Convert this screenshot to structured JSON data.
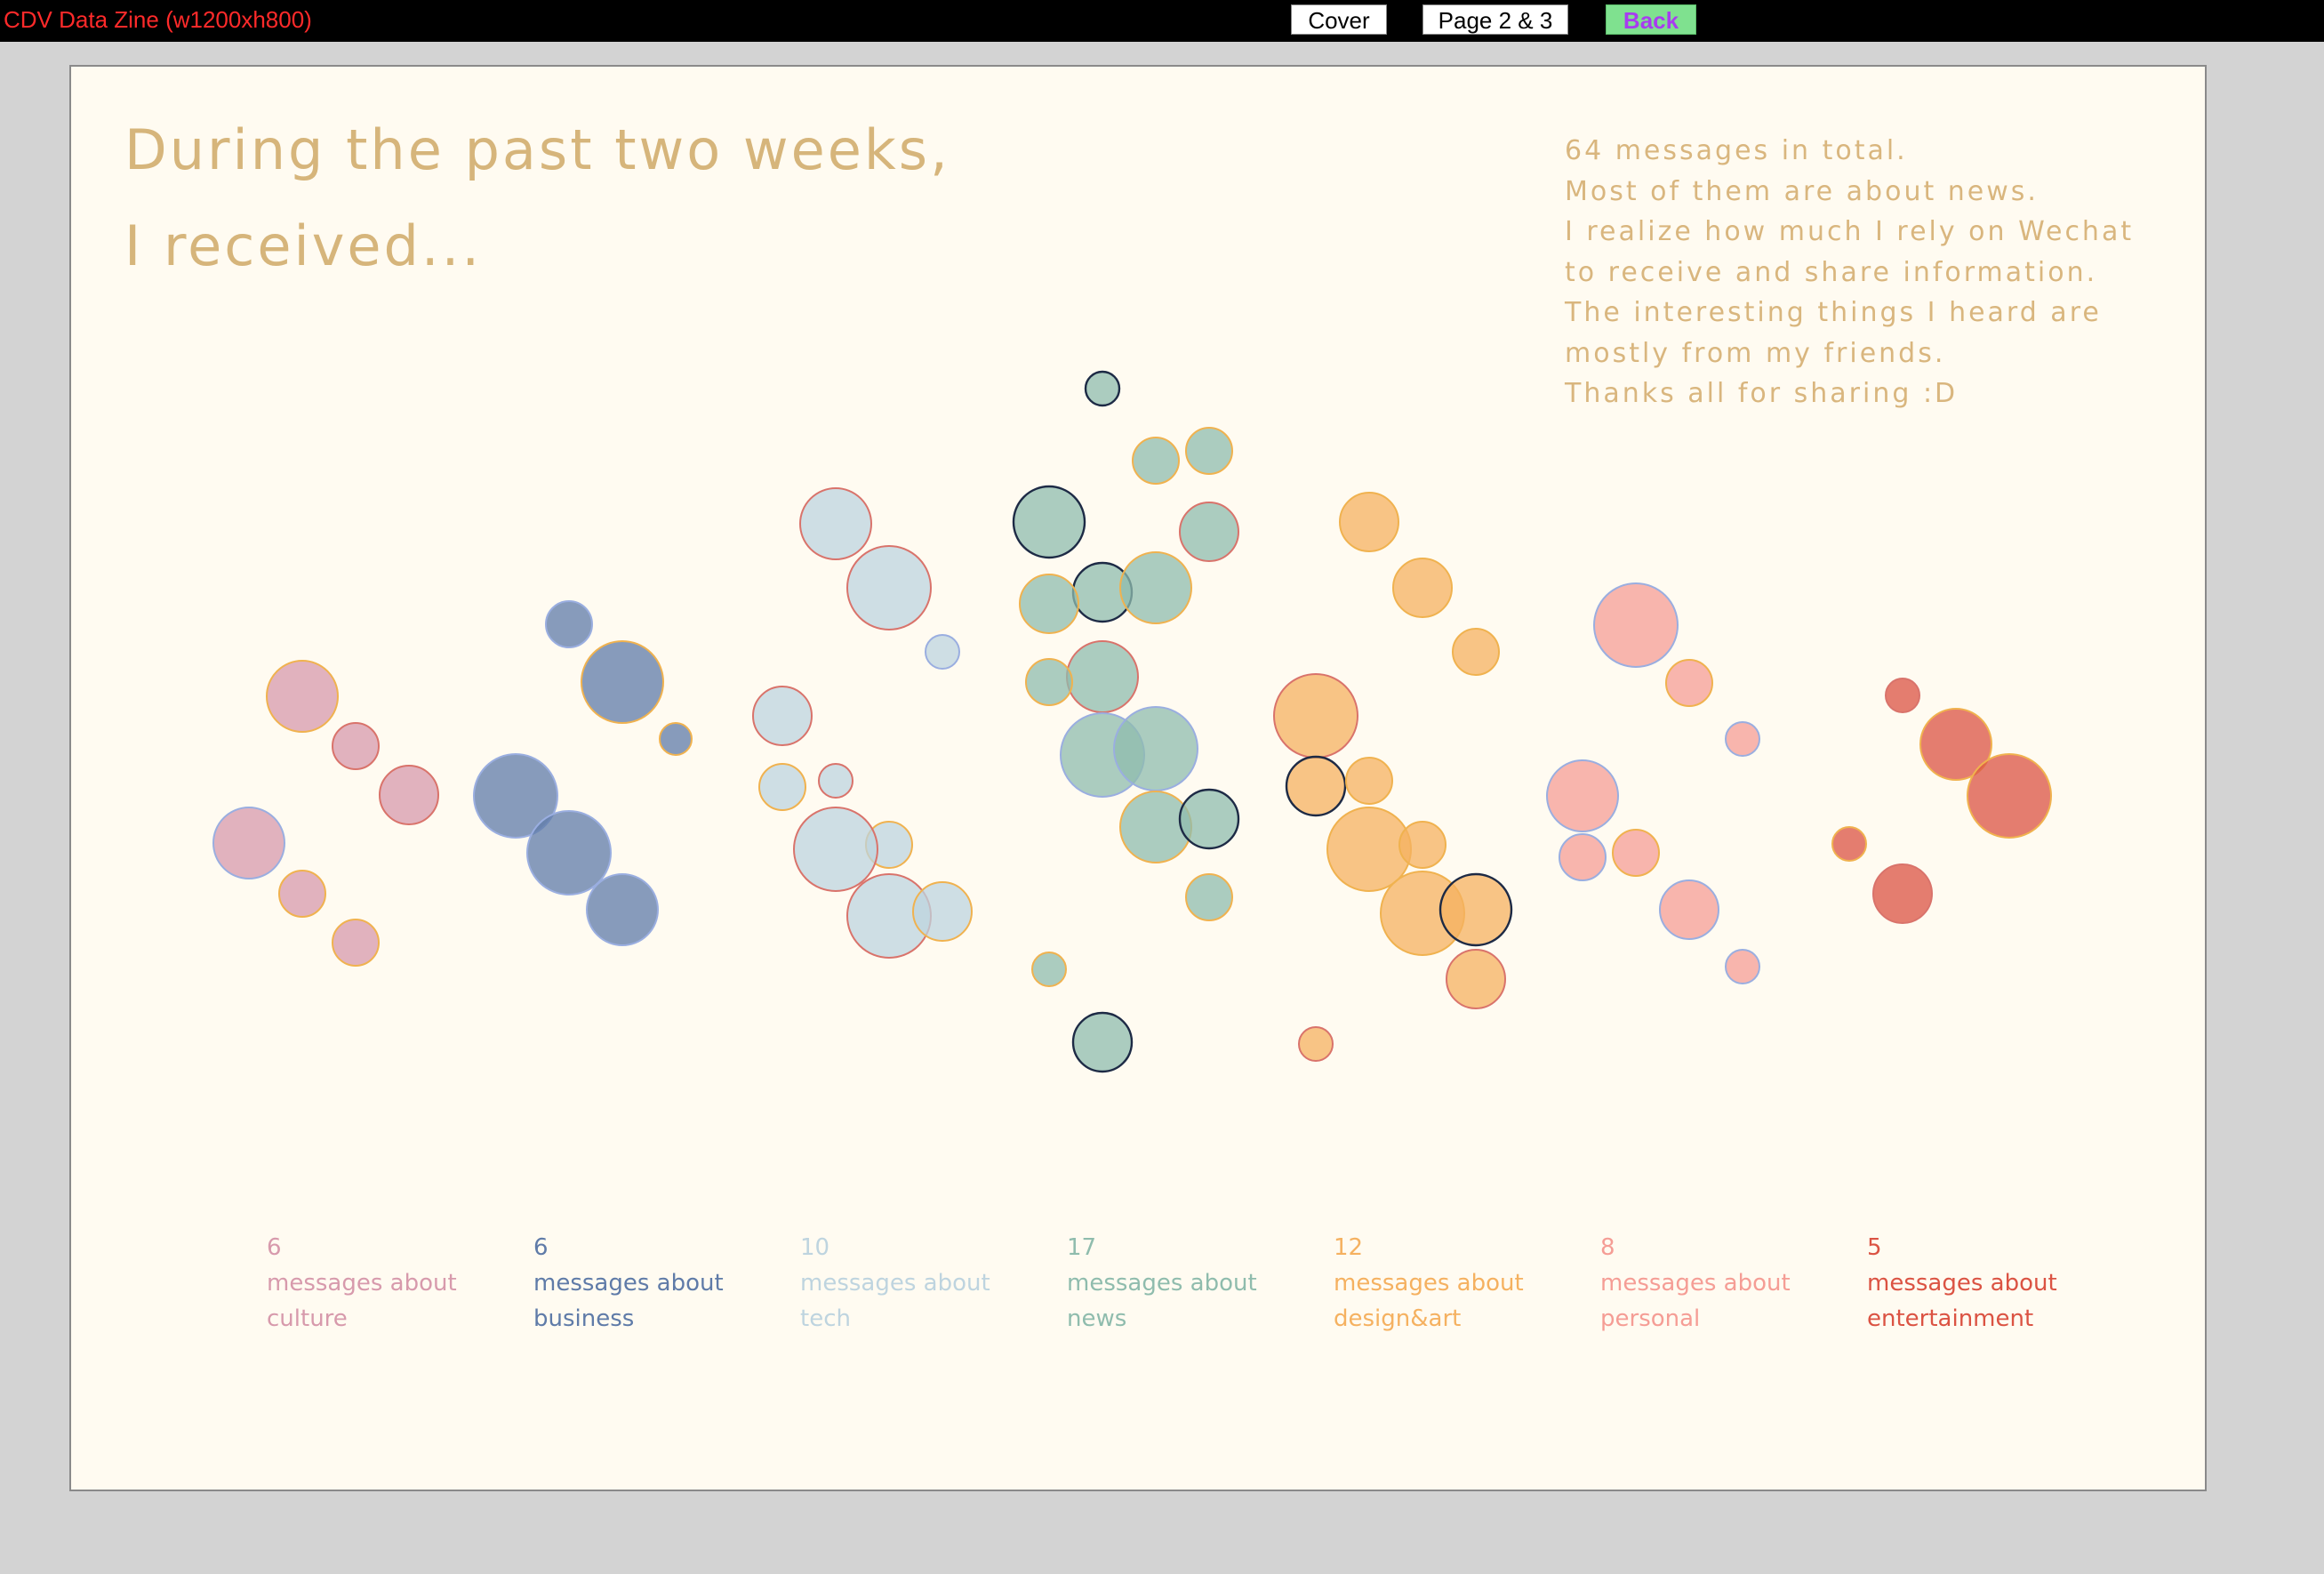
{
  "topbar": {
    "title": "CDV Data Zine (w1200xh800)",
    "buttons": {
      "cover": "Cover",
      "pages": "Page 2 & 3",
      "back": "Back"
    }
  },
  "headline": {
    "line1": "During the past two weeks,",
    "line2": "I received..."
  },
  "notes": [
    "64 messages in total.",
    "Most of them are about news.",
    "I realize how much I rely on Wechat",
    "to receive and share information.",
    "The interesting things I heard are",
    "mostly from my friends.",
    "Thanks all for sharing :D"
  ],
  "chart_data": {
    "type": "bubble",
    "series": [
      {
        "name": "culture",
        "count": 6,
        "prefix": "messages about",
        "color": "#d79aac"
      },
      {
        "name": "business",
        "count": 6,
        "prefix": "messages about",
        "color": "#5f7ba8"
      },
      {
        "name": "tech",
        "count": 10,
        "prefix": "messages about",
        "color": "#bed4df"
      },
      {
        "name": "news",
        "count": 17,
        "prefix": "messages about",
        "color": "#8fbcad"
      },
      {
        "name": "design&art",
        "count": 12,
        "prefix": "messages about",
        "color": "#f5b160"
      },
      {
        "name": "personal",
        "count": 8,
        "prefix": "messages about",
        "color": "#f59d95"
      },
      {
        "name": "entertainment",
        "count": 5,
        "prefix": "messages about",
        "color": "#db5343"
      }
    ],
    "stroke_colors": {
      "orange": "#f0b24f",
      "blue": "#9aaee0",
      "red": "#d9736b",
      "navy": "#1d2a45"
    }
  }
}
